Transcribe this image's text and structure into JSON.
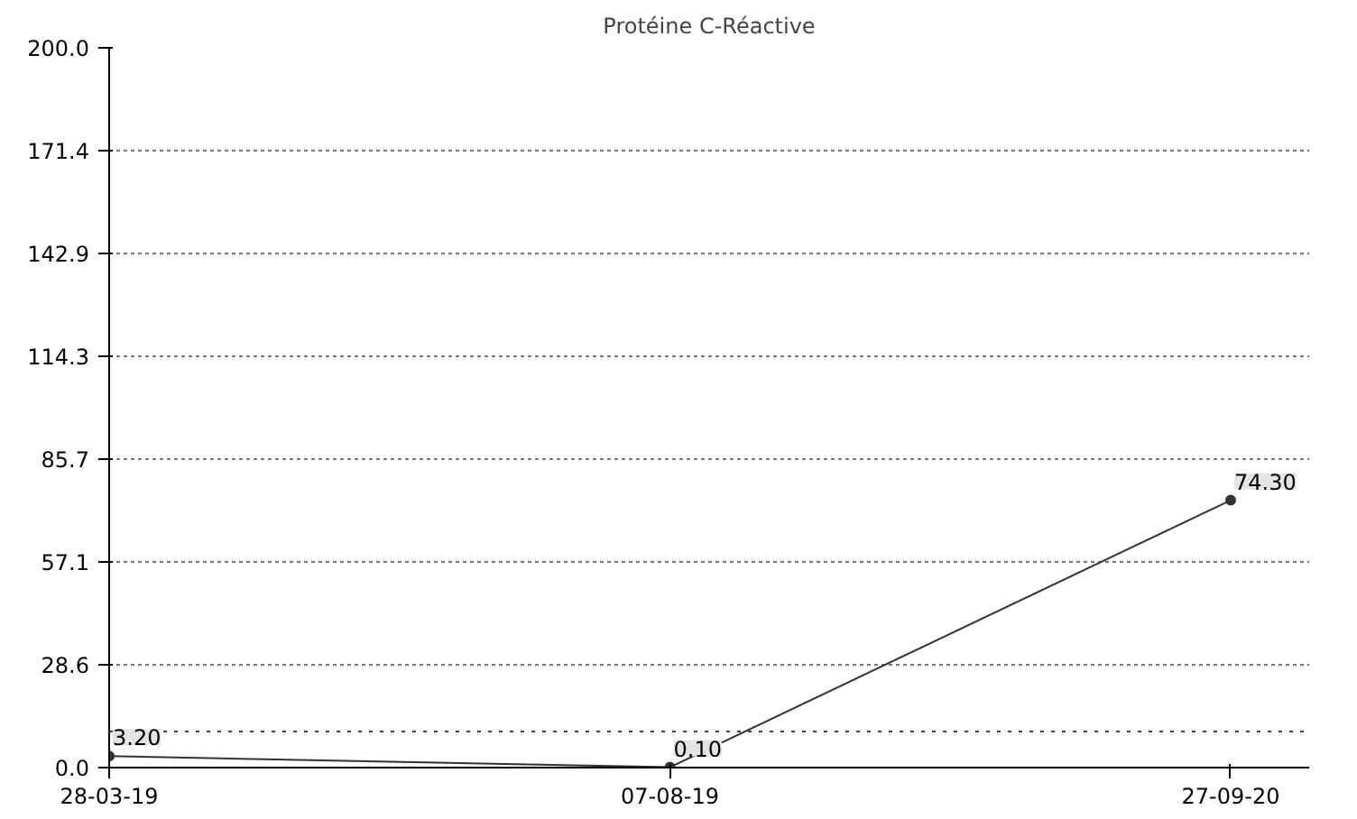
{
  "chart_data": {
    "type": "line",
    "title": "Protéine C-Réactive",
    "categories": [
      "28-03-19",
      "07-08-19",
      "27-09-20"
    ],
    "series": [
      {
        "color": "#333333",
        "values": [
          3.2,
          0.1,
          74.3
        ]
      }
    ],
    "value_labels": [
      "3.20",
      "0.10",
      "74.30"
    ],
    "ylim": [
      0,
      200
    ],
    "yticks": [
      {
        "value": 0,
        "label": "0.0"
      },
      {
        "value": 28.6,
        "label": "28.6"
      },
      {
        "value": 57.1,
        "label": "57.1"
      },
      {
        "value": 85.7,
        "label": "85.7"
      },
      {
        "value": 114.3,
        "label": "114.3"
      },
      {
        "value": 142.9,
        "label": "142.9"
      },
      {
        "value": 171.4,
        "label": "171.4"
      },
      {
        "value": 200,
        "label": "200.0"
      }
    ],
    "ref_lines": [
      {
        "axis": "y",
        "value": 10,
        "color": "#444444",
        "line_style": "dotted"
      }
    ],
    "grid": "y",
    "marker": "circle",
    "line_style": "solid"
  }
}
